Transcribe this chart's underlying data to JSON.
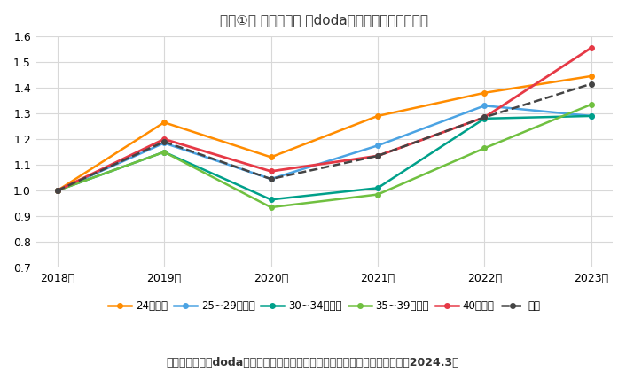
{
  "title": "『図①』 年齢区分別 「doda」新規登録者数の推移",
  "subtitle": "転職サービス「doda」、「ミドル層の異業種・異職種転職実態レポート」（2024.3）",
  "x_labels": [
    "2018年",
    "2019年",
    "2020年",
    "2021年",
    "2022年",
    "2023年"
  ],
  "series": [
    {
      "label": "24歳以下",
      "color": "#FF8C00",
      "marker": "o",
      "linestyle": "-",
      "linewidth": 1.8,
      "markersize": 4,
      "values": [
        1.0,
        1.265,
        1.13,
        1.29,
        1.38,
        1.445
      ]
    },
    {
      "label": "25~29歳以下",
      "color": "#4BA3E3",
      "marker": "o",
      "linestyle": "-",
      "linewidth": 1.8,
      "markersize": 4,
      "values": [
        1.0,
        1.185,
        1.045,
        1.175,
        1.33,
        1.29
      ]
    },
    {
      "label": "30~34歳以下",
      "color": "#00A08A",
      "marker": "o",
      "linestyle": "-",
      "linewidth": 1.8,
      "markersize": 4,
      "values": [
        1.0,
        1.15,
        0.965,
        1.01,
        1.28,
        1.29
      ]
    },
    {
      "label": "35~39歳以下",
      "color": "#70C040",
      "marker": "o",
      "linestyle": "-",
      "linewidth": 1.8,
      "markersize": 4,
      "values": [
        1.0,
        1.15,
        0.935,
        0.985,
        1.165,
        1.335
      ]
    },
    {
      "label": "40歳以上",
      "color": "#E63946",
      "marker": "o",
      "linestyle": "-",
      "linewidth": 2.0,
      "markersize": 4,
      "values": [
        1.0,
        1.2,
        1.075,
        1.135,
        1.285,
        1.555
      ]
    },
    {
      "label": "全体",
      "color": "#444444",
      "marker": "o",
      "linestyle": "--",
      "linewidth": 1.8,
      "markersize": 4,
      "values": [
        1.0,
        1.19,
        1.045,
        1.135,
        1.285,
        1.415
      ]
    }
  ],
  "ylim": [
    0.7,
    1.6
  ],
  "yticks": [
    0.7,
    0.8,
    0.9,
    1.0,
    1.1,
    1.2,
    1.3,
    1.4,
    1.5,
    1.6
  ],
  "bg_color": "#ffffff",
  "grid_color": "#d8d8d8",
  "title_fontsize": 11,
  "tick_fontsize": 9,
  "legend_fontsize": 8.5,
  "subtitle_fontsize": 9
}
